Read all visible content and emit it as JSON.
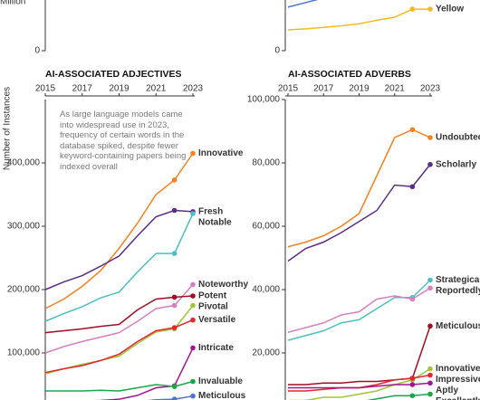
{
  "chart_data": [
    {
      "type": "line",
      "ylabel": "Million",
      "ylim": [
        0,
        1000000
      ],
      "yticks": [
        0
      ],
      "x": [
        2015,
        2016,
        2017,
        2018,
        2019,
        2020,
        2021,
        2022,
        2023
      ],
      "xlim": [
        2015,
        2023
      ],
      "series": []
    },
    {
      "type": "line",
      "ylim": [
        0,
        100000
      ],
      "yticks": [
        0
      ],
      "x": [
        2015,
        2016,
        2017,
        2018,
        2019,
        2020,
        2021,
        2022,
        2023
      ],
      "xlim": [
        2015,
        2023
      ],
      "series": [
        {
          "color": "#4878c8",
          "values": [
            86000,
            95000,
            104000,
            null,
            null,
            null,
            null,
            null,
            null
          ]
        },
        {
          "name": "Yellow",
          "color": "#f4bb1a",
          "values": [
            41000,
            43000,
            46000,
            49000,
            53000,
            60000,
            66000,
            82000,
            82000
          ]
        }
      ]
    },
    {
      "type": "line",
      "title": "AI-ASSOCIATED ADJECTIVES",
      "ylabel": "Number of Instances",
      "annotation": "As large language models came into widespread use in 2023, frequency of certain words in the database spiked, despite fewer keyword-containing papers being indexed overall",
      "x": [
        2015,
        2016,
        2017,
        2018,
        2019,
        2020,
        2021,
        2022,
        2023
      ],
      "xlim": [
        2015,
        2023
      ],
      "xticks": [
        2015,
        2017,
        2019,
        2021,
        2023
      ],
      "ylim": [
        0,
        500000
      ],
      "yticks": [
        {
          "value": 100000,
          "label": "100,000"
        },
        {
          "value": 200000,
          "label": "200,000"
        },
        {
          "value": 300000,
          "label": "300,000"
        },
        {
          "value": 400000,
          "label": "400,000"
        }
      ],
      "series": [
        {
          "name": "Innovative",
          "color": "#f58220",
          "values": [
            170000,
            185000,
            205000,
            230000,
            265000,
            305000,
            350000,
            373000,
            415000
          ]
        },
        {
          "name": "Fresh",
          "color": "#5b2c86",
          "values": [
            200000,
            212000,
            222000,
            237000,
            253000,
            285000,
            315000,
            325000,
            323000
          ]
        },
        {
          "name": "Notable",
          "color": "#4cc0c0",
          "values": [
            150000,
            162000,
            173000,
            187000,
            196000,
            228000,
            257000,
            257000,
            320000
          ]
        },
        {
          "name": "Noteworthy",
          "color": "#d580c0",
          "values": [
            100000,
            110000,
            118000,
            125000,
            132000,
            150000,
            170000,
            175000,
            208000
          ]
        },
        {
          "name": "Potent",
          "color": "#a00d24",
          "values": [
            132000,
            135000,
            138000,
            142000,
            145000,
            168000,
            185000,
            188000,
            190000
          ]
        },
        {
          "name": "Pivotal",
          "color": "#9dc63b",
          "values": [
            67000,
            75000,
            82000,
            88000,
            95000,
            115000,
            133000,
            138000,
            175000
          ]
        },
        {
          "name": "Versatile",
          "color": "#e3262f",
          "values": [
            69000,
            75000,
            80000,
            88000,
            98000,
            118000,
            135000,
            140000,
            152000
          ]
        },
        {
          "name": "Intricate",
          "color": "#a0178f",
          "values": [
            22000,
            23000,
            24000,
            25000,
            27000,
            33000,
            45000,
            48000,
            108000
          ]
        },
        {
          "name": "Invaluable",
          "color": "#1aa54b",
          "values": [
            40000,
            40000,
            40000,
            41000,
            40000,
            45000,
            50000,
            47000,
            55000
          ]
        },
        {
          "name": "Meticulous",
          "color": "#4878c8",
          "values": [
            18000,
            18000,
            19000,
            20000,
            21000,
            23000,
            26000,
            27000,
            32000
          ]
        }
      ]
    },
    {
      "type": "line",
      "title": "AI-ASSOCIATED ADVERBS",
      "x": [
        2015,
        2016,
        2017,
        2018,
        2019,
        2020,
        2021,
        2022,
        2023
      ],
      "xlim": [
        2015,
        2023
      ],
      "xticks": [
        2015,
        2017,
        2019,
        2021,
        2023
      ],
      "ylim": [
        0,
        100000
      ],
      "yticks": [
        {
          "value": 20000,
          "label": "20,000"
        },
        {
          "value": 40000,
          "label": "40,000"
        },
        {
          "value": 60000,
          "label": "60,000"
        },
        {
          "value": 80000,
          "label": "80,000"
        },
        {
          "value": 100000,
          "label": "100,000"
        }
      ],
      "series": [
        {
          "name": "Undoubtedly",
          "color": "#f58220",
          "values": [
            53500,
            55000,
            57000,
            60000,
            64000,
            76000,
            88000,
            90500,
            88000
          ]
        },
        {
          "name": "Scholarly",
          "color": "#5b2c86",
          "values": [
            49000,
            53000,
            55000,
            58000,
            61500,
            65000,
            73000,
            72500,
            79500
          ]
        },
        {
          "name": "Strategically",
          "color": "#4cc0c0",
          "values": [
            24000,
            25500,
            27000,
            29500,
            30500,
            34000,
            37500,
            37500,
            43000
          ]
        },
        {
          "name": "Reportedly",
          "color": "#d580c0",
          "values": [
            26500,
            28000,
            29500,
            32000,
            33000,
            37000,
            38000,
            37000,
            40500
          ]
        },
        {
          "name": "Meticulously",
          "color": "#a00d24",
          "values": [
            10000,
            10000,
            10500,
            10500,
            11000,
            11000,
            11500,
            12000,
            28500
          ]
        },
        {
          "name": "Innovatively",
          "color": "#9dc63b",
          "values": [
            5000,
            5000,
            6000,
            6000,
            7000,
            8000,
            10000,
            11500,
            15000
          ]
        },
        {
          "name": "Impressively",
          "color": "#e3262f",
          "values": [
            8000,
            8000,
            8500,
            9000,
            9000,
            10000,
            11500,
            12000,
            13000
          ]
        },
        {
          "name": "Aptly",
          "color": "#a0178f",
          "values": [
            9000,
            9000,
            9000,
            9000,
            9000,
            9500,
            10000,
            10000,
            10500
          ]
        },
        {
          "name": "Excellently",
          "color": "#1aa54b",
          "values": [
            3000,
            3000,
            3500,
            4000,
            4500,
            5500,
            6500,
            6500,
            7000
          ]
        }
      ]
    }
  ]
}
